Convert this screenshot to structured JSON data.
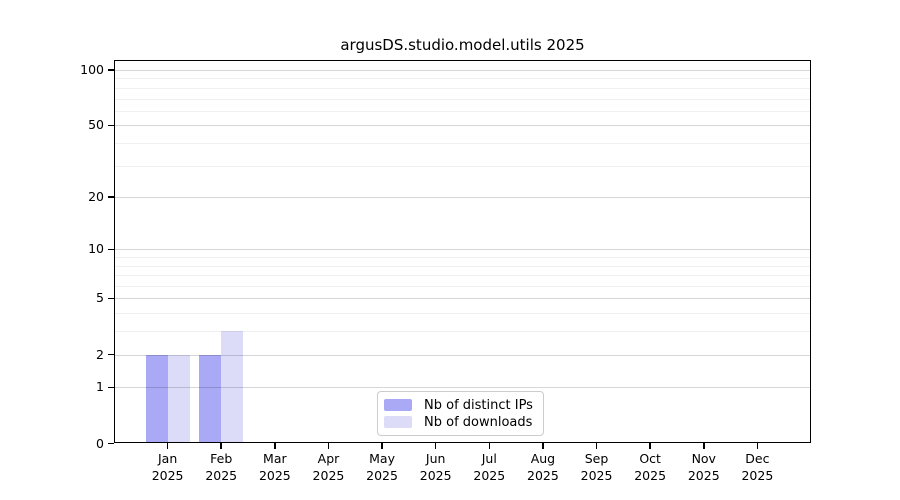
{
  "chart_data": {
    "type": "bar",
    "title": "argusDS.studio.model.utils 2025",
    "categories": [
      "Jan",
      "Feb",
      "Mar",
      "Apr",
      "May",
      "Jun",
      "Jul",
      "Aug",
      "Sep",
      "Oct",
      "Nov",
      "Dec"
    ],
    "year": "2025",
    "series": [
      {
        "name": "Nb of distinct IPs",
        "color": "#a9a9f6",
        "values": [
          2,
          2,
          0,
          0,
          0,
          0,
          0,
          0,
          0,
          0,
          0,
          0
        ]
      },
      {
        "name": "Nb of downloads",
        "color": "#dcdcf9",
        "values": [
          2,
          3,
          0,
          0,
          0,
          0,
          0,
          0,
          0,
          0,
          0,
          0
        ]
      }
    ],
    "xlabel": "",
    "ylabel": "",
    "yscale": "symlog",
    "ylim": [
      0,
      112.6
    ],
    "yticks": [
      0,
      1,
      2,
      5,
      10,
      20,
      50,
      100
    ],
    "minor_yticks": [
      3,
      4,
      6,
      7,
      8,
      9,
      30,
      40,
      60,
      70,
      80,
      90
    ],
    "grid": "horizontal",
    "legend_position": "bottom-center-inside",
    "colors": {
      "axis": "#000000",
      "background": "#ffffff",
      "major_grid": "#d4d4d4",
      "minor_grid": "#ececec"
    }
  }
}
